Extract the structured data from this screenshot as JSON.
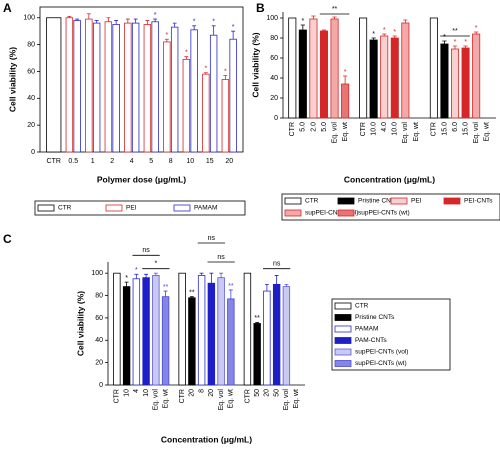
{
  "chart_data": [
    {
      "type": "bar",
      "label": "A",
      "x_label": "Polymer dose (μg/mL)",
      "y_label": "Cell viability (%)",
      "frame": true,
      "legend": "bottom",
      "categories": [
        "CTR",
        "0.5",
        "1",
        "2",
        "4",
        "5",
        "8",
        "10",
        "15",
        "20"
      ],
      "ylim": [
        0,
        108
      ],
      "yticks": [
        0,
        20,
        40,
        60,
        80,
        100
      ],
      "series": [
        {
          "name": "CTR",
          "color": "#ffffff",
          "edgecolor": "#000000",
          "values": [
            100,
            null,
            null,
            null,
            null,
            null,
            null,
            null,
            null,
            null
          ]
        },
        {
          "name": "PEI",
          "color": "#ffffff",
          "edgecolor": "#d62728",
          "values": [
            null,
            100,
            99,
            97,
            96,
            95,
            82,
            69,
            58,
            54
          ],
          "errors": [
            null,
            1,
            4,
            3,
            3,
            3,
            2,
            2,
            1,
            3
          ],
          "significance": [
            null,
            null,
            null,
            null,
            null,
            null,
            "*",
            "*",
            "*",
            "*"
          ]
        },
        {
          "name": "PAMAM",
          "color": "#ffffff",
          "edgecolor": "#2b2bc8",
          "values": [
            null,
            98,
            96,
            95,
            96,
            97,
            93,
            91,
            87,
            84
          ],
          "errors": [
            null,
            1,
            2,
            3,
            3,
            2,
            3,
            3,
            7,
            6
          ],
          "significance": [
            null,
            null,
            null,
            null,
            null,
            "*",
            null,
            "*",
            "*",
            "*"
          ]
        }
      ]
    },
    {
      "type": "bar",
      "label": "B",
      "x_label": "Concentration (μg/mL)",
      "y_label": "Cell viability (%)",
      "frame": false,
      "legend": "bottom",
      "categories": [
        "CTR",
        "5.0",
        "2.0",
        "5.0",
        "Eq. vol",
        "Eq. wt",
        "CTR",
        "10.0",
        "4.0",
        "10.0",
        "Eq. vol",
        "Eq. wt",
        "CTR",
        "15.0",
        "6.0",
        "15.0",
        "Eq. vol",
        "Eq. wt"
      ],
      "ylim": [
        0,
        106
      ],
      "yticks": [
        0,
        20,
        40,
        60,
        80,
        100
      ],
      "series": [
        {
          "name": "CTR",
          "color": "#ffffff",
          "edgecolor": "#000000",
          "values": [
            100,
            null,
            null,
            null,
            null,
            null,
            100,
            null,
            null,
            null,
            null,
            null,
            100,
            null,
            null,
            null,
            null,
            null
          ]
        },
        {
          "name": "Pristine CNTs",
          "color": "#000000",
          "edgecolor": "#000000",
          "values": [
            null,
            88,
            null,
            null,
            null,
            null,
            null,
            78,
            null,
            null,
            null,
            null,
            null,
            74,
            null,
            null,
            null,
            null
          ],
          "errors": [
            null,
            5,
            null,
            null,
            null,
            null,
            null,
            2,
            null,
            null,
            null,
            null,
            null,
            3,
            null,
            null,
            null,
            null
          ],
          "significance": [
            null,
            "*",
            null,
            null,
            null,
            null,
            null,
            "*",
            null,
            null,
            null,
            null,
            null,
            "*",
            null,
            null,
            null,
            null
          ]
        },
        {
          "name": "PEI",
          "color": "#f8d0d0",
          "edgecolor": "#d62728",
          "values": [
            null,
            null,
            99,
            null,
            null,
            null,
            null,
            null,
            82,
            null,
            null,
            null,
            null,
            null,
            69,
            null,
            null,
            null
          ],
          "errors": [
            null,
            null,
            3,
            null,
            null,
            null,
            null,
            null,
            2,
            null,
            null,
            null,
            null,
            null,
            3,
            null,
            null,
            null
          ],
          "significance": [
            null,
            null,
            null,
            null,
            null,
            null,
            null,
            null,
            "*",
            null,
            null,
            null,
            null,
            null,
            "*",
            null,
            null,
            null
          ]
        },
        {
          "name": "PEI-CNTs",
          "color": "#d62728",
          "edgecolor": "#d62728",
          "values": [
            null,
            null,
            null,
            87,
            null,
            null,
            null,
            null,
            null,
            80,
            null,
            null,
            null,
            null,
            null,
            70,
            null,
            null
          ],
          "errors": [
            null,
            null,
            null,
            1,
            null,
            null,
            null,
            null,
            null,
            2,
            null,
            null,
            null,
            null,
            null,
            2,
            null,
            null
          ],
          "significance": [
            null,
            null,
            null,
            null,
            null,
            null,
            null,
            null,
            null,
            "*",
            null,
            null,
            null,
            null,
            null,
            "*",
            null,
            null
          ]
        },
        {
          "name": "supPEI-CNTs (vol)",
          "color": "#f4a9a9",
          "edgecolor": "#d62728",
          "values": [
            null,
            null,
            null,
            null,
            99,
            null,
            null,
            null,
            null,
            null,
            95,
            null,
            null,
            null,
            null,
            null,
            84,
            null
          ],
          "errors": [
            null,
            null,
            null,
            null,
            2,
            null,
            null,
            null,
            null,
            null,
            3,
            null,
            null,
            null,
            null,
            null,
            2,
            null
          ],
          "significance": [
            null,
            null,
            null,
            null,
            null,
            null,
            null,
            null,
            null,
            null,
            null,
            null,
            null,
            null,
            null,
            null,
            "*",
            null
          ]
        },
        {
          "name": "supPEI-CNTs (wt)",
          "color": "#ea7474",
          "edgecolor": "#d62728",
          "values": [
            null,
            null,
            null,
            null,
            null,
            34,
            null,
            null,
            null,
            null,
            null,
            null,
            null,
            null,
            null,
            null,
            null,
            null
          ],
          "errors": [
            null,
            null,
            null,
            null,
            null,
            8,
            null,
            null,
            null,
            null,
            null,
            null,
            null,
            null,
            null,
            null,
            null,
            null
          ],
          "significance": [
            null,
            null,
            null,
            null,
            null,
            "*",
            null,
            null,
            null,
            null,
            null,
            null,
            null,
            null,
            null,
            null,
            null,
            null
          ]
        }
      ],
      "brackets": [
        {
          "label": "**",
          "from": 3,
          "to": 5,
          "y": 104
        },
        {
          "label": "**",
          "from": 13,
          "to": 15,
          "y": 82
        }
      ]
    },
    {
      "type": "bar",
      "label": "C",
      "x_label": "Concentration (μg/mL)",
      "y_label": "Cell viability (%)",
      "frame": false,
      "legend": "right",
      "categories": [
        "CTR",
        "10",
        "4",
        "10",
        "Eq. vol",
        "Eq. wt",
        "CTR",
        "20",
        "8",
        "20",
        "Eq. vol",
        "Eq. wt",
        "CTR",
        "50",
        "20",
        "50",
        "Eq. vol",
        "Eq. wt"
      ],
      "ylim": [
        0,
        110
      ],
      "yticks": [
        0,
        20,
        40,
        60,
        80,
        100
      ],
      "series": [
        {
          "name": "CTR",
          "color": "#ffffff",
          "edgecolor": "#000000",
          "values": [
            100,
            null,
            null,
            null,
            null,
            null,
            100,
            null,
            null,
            null,
            null,
            null,
            100,
            null,
            null,
            null,
            null,
            null
          ]
        },
        {
          "name": "Pristine CNTs",
          "color": "#000000",
          "edgecolor": "#000000",
          "values": [
            null,
            88,
            null,
            null,
            null,
            null,
            null,
            78,
            null,
            null,
            null,
            null,
            null,
            55,
            null,
            null,
            null,
            null
          ],
          "errors": [
            null,
            4,
            null,
            null,
            null,
            null,
            null,
            1,
            null,
            null,
            null,
            null,
            null,
            1,
            null,
            null,
            null,
            null
          ],
          "significance": [
            null,
            "*",
            null,
            null,
            null,
            null,
            null,
            "**",
            null,
            null,
            null,
            null,
            null,
            "**",
            null,
            null,
            null,
            null
          ]
        },
        {
          "name": "PAMAM",
          "color": "#ffffff",
          "edgecolor": "#2b2bc8",
          "values": [
            null,
            null,
            95,
            null,
            null,
            null,
            null,
            null,
            98,
            null,
            null,
            null,
            null,
            null,
            84,
            null,
            null,
            null
          ],
          "errors": [
            null,
            null,
            4,
            null,
            null,
            null,
            null,
            null,
            2,
            null,
            null,
            null,
            null,
            null,
            6,
            null,
            null,
            null
          ],
          "significance": [
            null,
            null,
            "*",
            null,
            null,
            null,
            null,
            null,
            null,
            null,
            null,
            null,
            null,
            null,
            null,
            null,
            null,
            null
          ]
        },
        {
          "name": "PAM-CNTs",
          "color": "#1f1fc8",
          "edgecolor": "#1f1fc8",
          "values": [
            null,
            null,
            null,
            96,
            null,
            null,
            null,
            null,
            null,
            91,
            null,
            null,
            null,
            null,
            null,
            90,
            null,
            null
          ],
          "errors": [
            null,
            null,
            null,
            3,
            null,
            null,
            null,
            null,
            null,
            9,
            null,
            null,
            null,
            null,
            null,
            8,
            null,
            null
          ]
        },
        {
          "name": "supPEI-CNTs (vol)",
          "color": "#c9c9f2",
          "edgecolor": "#5a5ad8",
          "values": [
            null,
            null,
            null,
            null,
            98,
            null,
            null,
            null,
            null,
            null,
            96,
            null,
            null,
            null,
            null,
            null,
            88,
            null
          ],
          "errors": [
            null,
            null,
            null,
            null,
            2,
            null,
            null,
            null,
            null,
            null,
            4,
            null,
            null,
            null,
            null,
            null,
            2,
            null
          ]
        },
        {
          "name": "supPEI-CNTs (wt)",
          "color": "#8585e6",
          "edgecolor": "#4a4ad0",
          "values": [
            null,
            null,
            null,
            null,
            null,
            79,
            null,
            null,
            null,
            null,
            null,
            77,
            null,
            null,
            null,
            null,
            null,
            null
          ],
          "errors": [
            null,
            null,
            null,
            null,
            null,
            5,
            null,
            null,
            null,
            null,
            null,
            8,
            null,
            null,
            null,
            null,
            null,
            null
          ],
          "significance": [
            null,
            null,
            null,
            null,
            null,
            "**",
            null,
            null,
            null,
            null,
            null,
            "**",
            null,
            null,
            null,
            null,
            null,
            null
          ]
        }
      ],
      "brackets": [
        {
          "label": "ns",
          "from": 2,
          "to": 4,
          "y": 116
        },
        {
          "label": "*",
          "from": 3,
          "to": 5,
          "y": 104
        },
        {
          "label": "ns",
          "from": 8,
          "to": 10,
          "y": 127
        },
        {
          "label": "ns",
          "from": 9,
          "to": 11,
          "y": 110
        },
        {
          "label": "ns",
          "from": 14,
          "to": 16,
          "y": 104
        }
      ]
    }
  ]
}
